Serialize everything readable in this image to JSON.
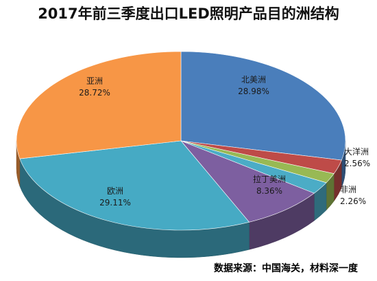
{
  "title": "2017年前三季度出口LED照明产品目的洲结构",
  "source": "数据来源：中国海关，材料深一度",
  "chart_data": {
    "type": "pie",
    "title": "2017年前三季度出口LED照明产品目的洲结构",
    "slices": [
      {
        "name": "北美洲",
        "value": 28.98,
        "label": "28.98%",
        "color": "#4a7ebb"
      },
      {
        "name": "大洋洲",
        "value": 2.56,
        "label": "2.56%",
        "color": "#be4b48"
      },
      {
        "name": "",
        "value": 1.81,
        "label": "",
        "color": "#98b954"
      },
      {
        "name": "非洲",
        "value": 2.26,
        "label": "2.26%",
        "color": "#4bacc6"
      },
      {
        "name": "拉丁美洲",
        "value": 8.36,
        "label": "8.36%",
        "color": "#7d5fa0"
      },
      {
        "name": "欧洲",
        "value": 29.11,
        "label": "29.11%",
        "color": "#46aac4"
      },
      {
        "name": "亚洲",
        "value": 28.72,
        "label": "28.72%",
        "color": "#f79646"
      }
    ]
  }
}
